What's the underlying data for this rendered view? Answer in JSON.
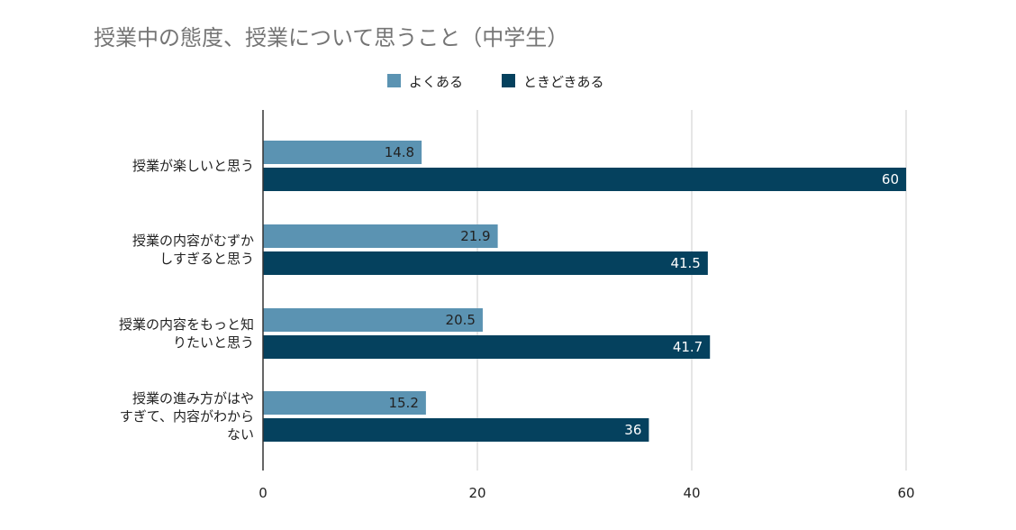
{
  "chart_data": {
    "type": "bar",
    "orientation": "horizontal",
    "title": "授業中の態度、授業について思うこと（中学生）",
    "legend_position": "top-center",
    "categories": [
      [
        "授業が楽しいと思う"
      ],
      [
        "授業の内容がむずか",
        "しすぎると思う"
      ],
      [
        "授業の内容をもっと知",
        "りたいと思う"
      ],
      [
        "授業の進み方がはや",
        "すぎて、内容がわから",
        "ない"
      ]
    ],
    "series": [
      {
        "name": "よくある",
        "color": "#5b93b2",
        "values": [
          14.8,
          21.9,
          20.5,
          15.2
        ],
        "labels": [
          "14.8",
          "21.9",
          "20.5",
          "15.2"
        ],
        "label_color": "#222222"
      },
      {
        "name": "ときどきある",
        "color": "#05415e",
        "values": [
          60,
          41.5,
          41.7,
          36
        ],
        "labels": [
          "60",
          "41.5",
          "41.7",
          "36"
        ],
        "label_color": "#ffffff"
      }
    ],
    "xlim": [
      0,
      60
    ],
    "xticks": [
      0,
      20,
      40,
      60
    ],
    "xtick_labels": [
      "0",
      "20",
      "40",
      "60"
    ],
    "grid": true
  }
}
